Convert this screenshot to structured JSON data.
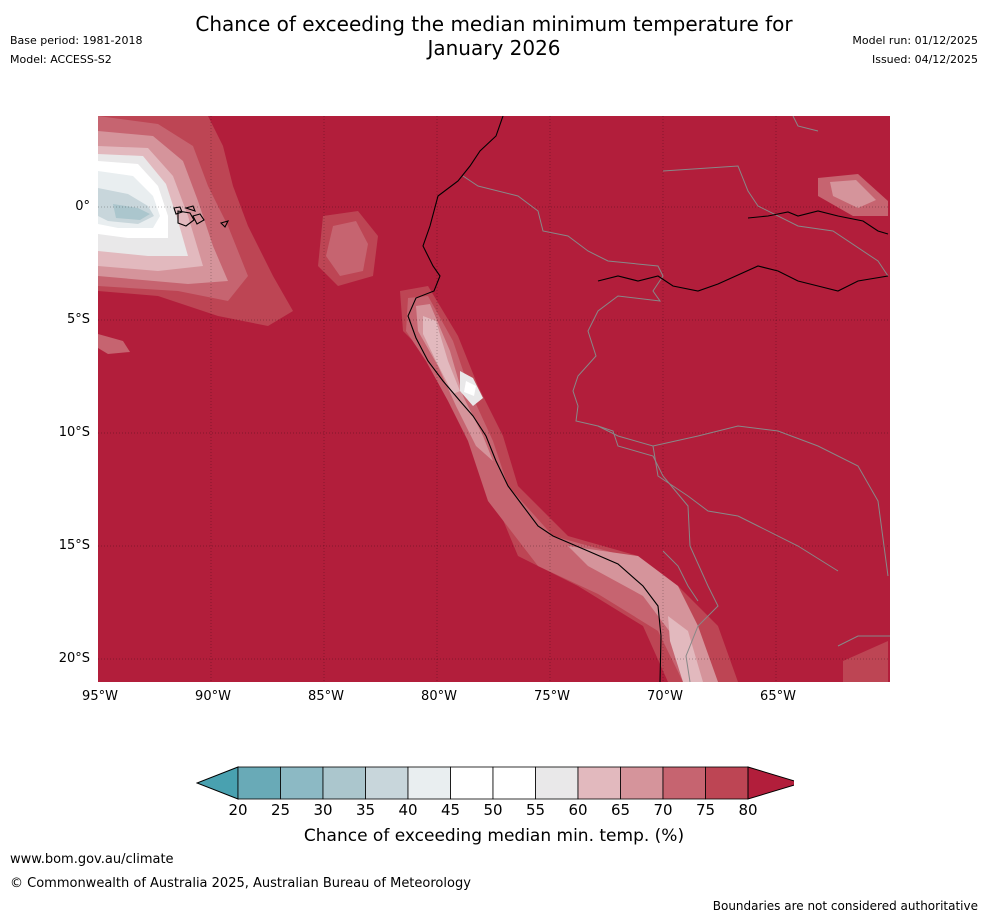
{
  "header": {
    "title_line1": "Chance of exceeding the median minimum temperature for",
    "title_line2": "January 2026",
    "base_period": "Base period: 1981-2018",
    "model": "Model: ACCESS-S2",
    "model_run": "Model run: 01/12/2025",
    "issued": "Issued: 04/12/2025"
  },
  "map": {
    "lat_labels": [
      "0°",
      "5°S",
      "10°S",
      "15°S",
      "20°S"
    ],
    "lon_labels": [
      "95°W",
      "90°W",
      "85°W",
      "80°W",
      "75°W",
      "70°W",
      "65°W"
    ],
    "background_category_color": "#b21e3b"
  },
  "colorbar": {
    "ticks": [
      "20",
      "25",
      "30",
      "35",
      "40",
      "45",
      "50",
      "55",
      "60",
      "65",
      "70",
      "75",
      "80"
    ],
    "colors": [
      "#69aab7",
      "#8cb9c4",
      "#abc6cd",
      "#c8d6db",
      "#e9eef0",
      "#ffffff",
      "#ffffff",
      "#e9e8e9",
      "#e2b9be",
      "#d5949b",
      "#c66470",
      "#bd4554"
    ],
    "low_color": "#49a1b0",
    "high_color": "#b21e3b",
    "label": "Chance of exceeding median min. temp. (%)"
  },
  "footer": {
    "url": "www.bom.gov.au/climate",
    "copyright": "© Commonwealth of Australia 2025, Australian Bureau of Meteorology",
    "disclaimer": "Boundaries are not considered authoritative"
  }
}
